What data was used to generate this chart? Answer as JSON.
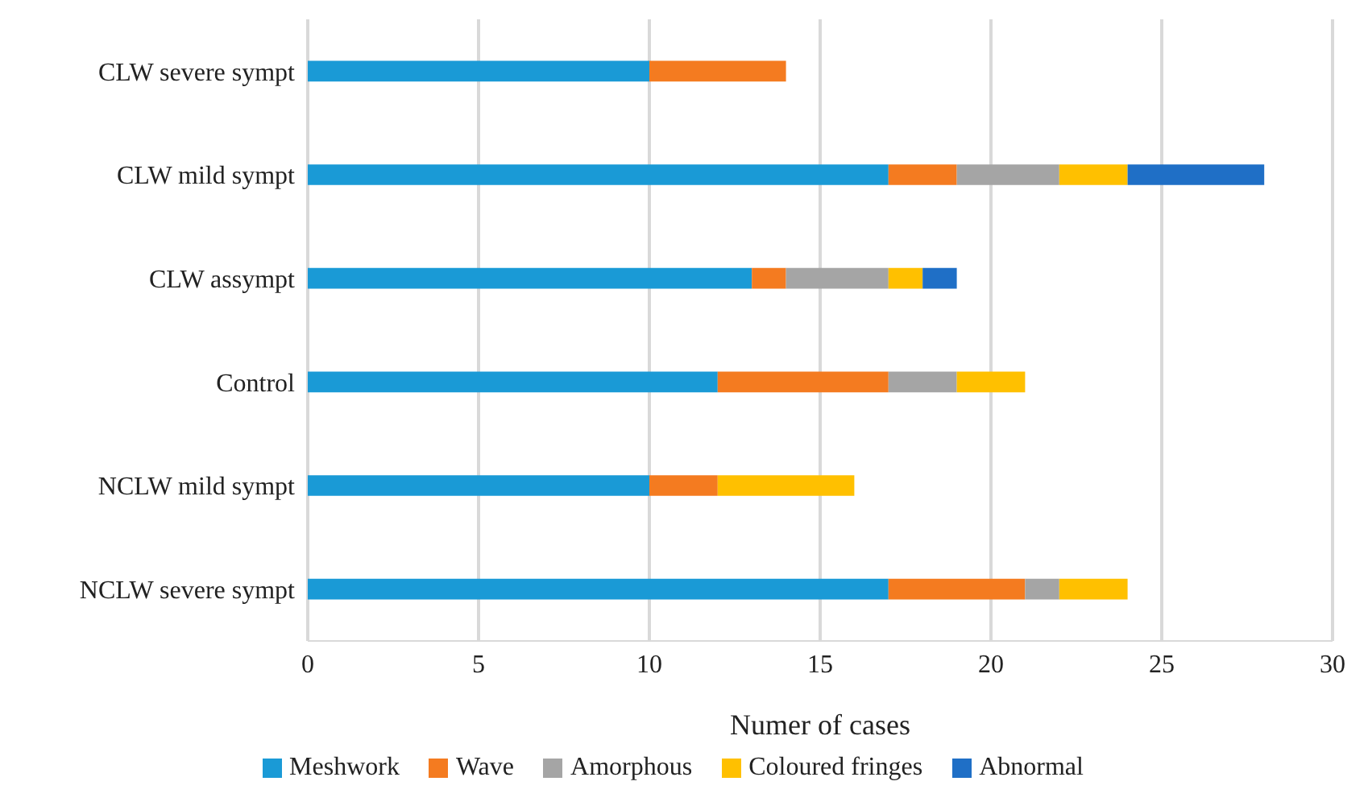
{
  "chart_data": {
    "type": "bar",
    "orientation": "horizontal",
    "stacked": true,
    "xlabel": "Numer of cases",
    "categories": [
      "CLW severe sympt",
      "CLW mild sympt",
      "CLW assympt",
      "Control",
      "NCLW mild sympt",
      "NCLW severe sympt"
    ],
    "series": [
      {
        "name": "Meshwork",
        "color": "#1a9ad6",
        "values": [
          10,
          17,
          13,
          12,
          10,
          17
        ]
      },
      {
        "name": "Wave",
        "color": "#f47b20",
        "values": [
          4,
          2,
          1,
          5,
          2,
          4
        ]
      },
      {
        "name": "Amorphous",
        "color": "#a5a5a5",
        "values": [
          0,
          3,
          3,
          2,
          0,
          1
        ]
      },
      {
        "name": "Coloured fringes",
        "color": "#ffc000",
        "values": [
          0,
          2,
          1,
          2,
          4,
          2
        ]
      },
      {
        "name": "Abnormal",
        "color": "#1f6fc6",
        "values": [
          0,
          4,
          1,
          0,
          0,
          0
        ]
      }
    ],
    "xlim": [
      0,
      30
    ],
    "xticks": [
      0,
      5,
      10,
      15,
      20,
      25,
      30
    ],
    "grid": "x",
    "legend": "bottom"
  }
}
